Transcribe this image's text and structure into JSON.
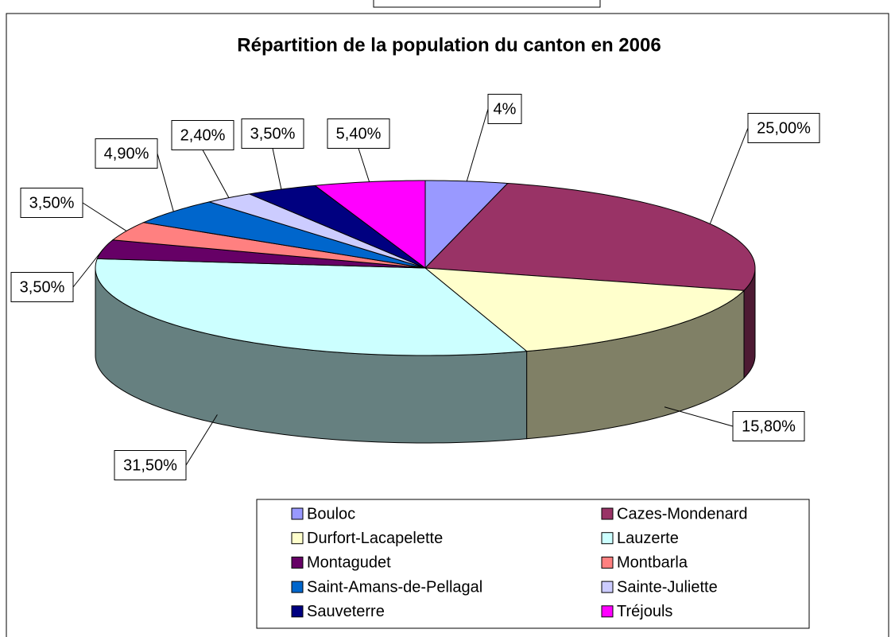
{
  "chart_data": {
    "type": "pie3d",
    "title": "Répartition de la population du canton en 2006",
    "categories": [
      "Bouloc",
      "Cazes-Mondenard",
      "Durfort-Lacapelette",
      "Lauzerte",
      "Montagudet",
      "Montbarla",
      "Saint-Amans-de-Pellagal",
      "Sainte-Juliette",
      "Sauveterre",
      "Tréjouls"
    ],
    "values": [
      4,
      25,
      15.8,
      31.5,
      3.5,
      3.5,
      4.9,
      2.4,
      3.5,
      5.4
    ],
    "value_labels": [
      "4%",
      "25,00%",
      "15,80%",
      "31,50%",
      "3,50%",
      "3,50%",
      "4,90%",
      "2,40%",
      "3,50%",
      "5,40%"
    ],
    "colors": [
      "#9999ff",
      "#993366",
      "#ffffcc",
      "#ccffff",
      "#660066",
      "#ff8080",
      "#0066cc",
      "#ccccff",
      "#000080",
      "#ff00ff"
    ],
    "legend": "bottom"
  }
}
